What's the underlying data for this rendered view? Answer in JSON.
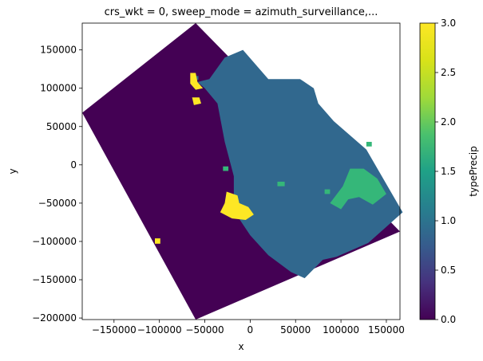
{
  "chart_data": {
    "type": "heatmap",
    "title": "crs_wkt = 0, sweep_mode = azimuth_surveillance,...",
    "xlabel": "x",
    "ylabel": "y",
    "xlim": [
      -185000,
      165000
    ],
    "ylim": [
      -202000,
      185000
    ],
    "x_ticks": [
      -150000,
      -100000,
      -50000,
      0,
      50000,
      100000,
      150000
    ],
    "x_tick_labels": [
      "−150000",
      "−100000",
      "−50000",
      "0",
      "50000",
      "100000",
      "150000"
    ],
    "y_ticks": [
      150000,
      100000,
      50000,
      0,
      -50000,
      -100000,
      -150000,
      -200000
    ],
    "y_tick_labels": [
      "150000",
      "100000",
      "50000",
      "0",
      "−50000",
      "−100000",
      "−150000",
      "−200000"
    ],
    "colorbar": {
      "label": "typePrecip",
      "colormap": "viridis",
      "range": [
        0,
        3
      ],
      "ticks": [
        0.0,
        0.5,
        1.0,
        1.5,
        2.0,
        2.5,
        3.0
      ],
      "tick_labels": [
        "0.0",
        "0.5",
        "1.0",
        "1.5",
        "2.0",
        "2.5",
        "3.0"
      ]
    },
    "domain_corners": [
      [
        -60000,
        185000
      ],
      [
        165000,
        -87000
      ],
      [
        -60000,
        -202000
      ],
      [
        -185000,
        68000
      ]
    ],
    "regions": [
      {
        "value": 1,
        "color": "#31688e",
        "polygon": [
          [
            -58000,
            108000
          ],
          [
            -45000,
            112000
          ],
          [
            -28000,
            140000
          ],
          [
            -8000,
            150000
          ],
          [
            20000,
            112000
          ],
          [
            55000,
            112000
          ],
          [
            70000,
            100000
          ],
          [
            75000,
            80000
          ],
          [
            92000,
            57000
          ],
          [
            128000,
            20000
          ],
          [
            168000,
            -62000
          ],
          [
            130000,
            -102000
          ],
          [
            95000,
            -120000
          ],
          [
            80000,
            -124000
          ],
          [
            60000,
            -148000
          ],
          [
            45000,
            -140000
          ],
          [
            20000,
            -118000
          ],
          [
            0,
            -92000
          ],
          [
            -18000,
            -60000
          ],
          [
            -18000,
            -15000
          ],
          [
            -28000,
            30000
          ],
          [
            -36000,
            80000
          ],
          [
            -50000,
            100000
          ]
        ]
      },
      {
        "value": 1,
        "color": "#31688e",
        "polygon": [
          [
            -62000,
            116000
          ],
          [
            -57000,
            116000
          ],
          [
            -57000,
            111000
          ],
          [
            -62000,
            111000
          ]
        ]
      },
      {
        "value": 3,
        "color": "#fde725",
        "polygon": [
          [
            -26000,
            -35000
          ],
          [
            -14000,
            -40000
          ],
          [
            -12000,
            -50000
          ],
          [
            -2000,
            -55000
          ],
          [
            4000,
            -65000
          ],
          [
            -5000,
            -72000
          ],
          [
            -20000,
            -70000
          ],
          [
            -33000,
            -62000
          ],
          [
            -28000,
            -50000
          ]
        ]
      },
      {
        "value": 3,
        "color": "#fde725",
        "polygon": [
          [
            -66000,
            120000
          ],
          [
            -60000,
            120000
          ],
          [
            -58000,
            108000
          ],
          [
            -52000,
            100000
          ],
          [
            -60000,
            98000
          ],
          [
            -66000,
            106000
          ]
        ]
      },
      {
        "value": 3,
        "color": "#fde725",
        "polygon": [
          [
            -64000,
            88000
          ],
          [
            -56000,
            88000
          ],
          [
            -54000,
            80000
          ],
          [
            -62000,
            78000
          ]
        ]
      },
      {
        "value": 3,
        "color": "#fde725",
        "polygon": [
          [
            -105000,
            -103000
          ],
          [
            -99000,
            -103000
          ],
          [
            -99000,
            -96000
          ],
          [
            -105000,
            -96000
          ]
        ]
      },
      {
        "value": 2,
        "color": "#35b779",
        "polygon": [
          [
            110000,
            -5000
          ],
          [
            125000,
            -5000
          ],
          [
            140000,
            -18000
          ],
          [
            150000,
            -38000
          ],
          [
            135000,
            -52000
          ],
          [
            120000,
            -42000
          ],
          [
            108000,
            -45000
          ],
          [
            100000,
            -58000
          ],
          [
            88000,
            -50000
          ],
          [
            102000,
            -28000
          ]
        ]
      },
      {
        "value": 2,
        "color": "#35b779",
        "polygon": [
          [
            128000,
            30000
          ],
          [
            134000,
            30000
          ],
          [
            134000,
            24000
          ],
          [
            128000,
            24000
          ]
        ]
      },
      {
        "value": 2,
        "color": "#35b779",
        "polygon": [
          [
            30000,
            -22000
          ],
          [
            38000,
            -22000
          ],
          [
            38000,
            -28000
          ],
          [
            30000,
            -28000
          ]
        ]
      },
      {
        "value": 2,
        "color": "#35b779",
        "polygon": [
          [
            -30000,
            -2000
          ],
          [
            -24000,
            -2000
          ],
          [
            -24000,
            -8000
          ],
          [
            -30000,
            -8000
          ]
        ]
      },
      {
        "value": 2,
        "color": "#35b779",
        "polygon": [
          [
            82000,
            -32000
          ],
          [
            88000,
            -32000
          ],
          [
            88000,
            -38000
          ],
          [
            82000,
            -38000
          ]
        ]
      }
    ]
  }
}
